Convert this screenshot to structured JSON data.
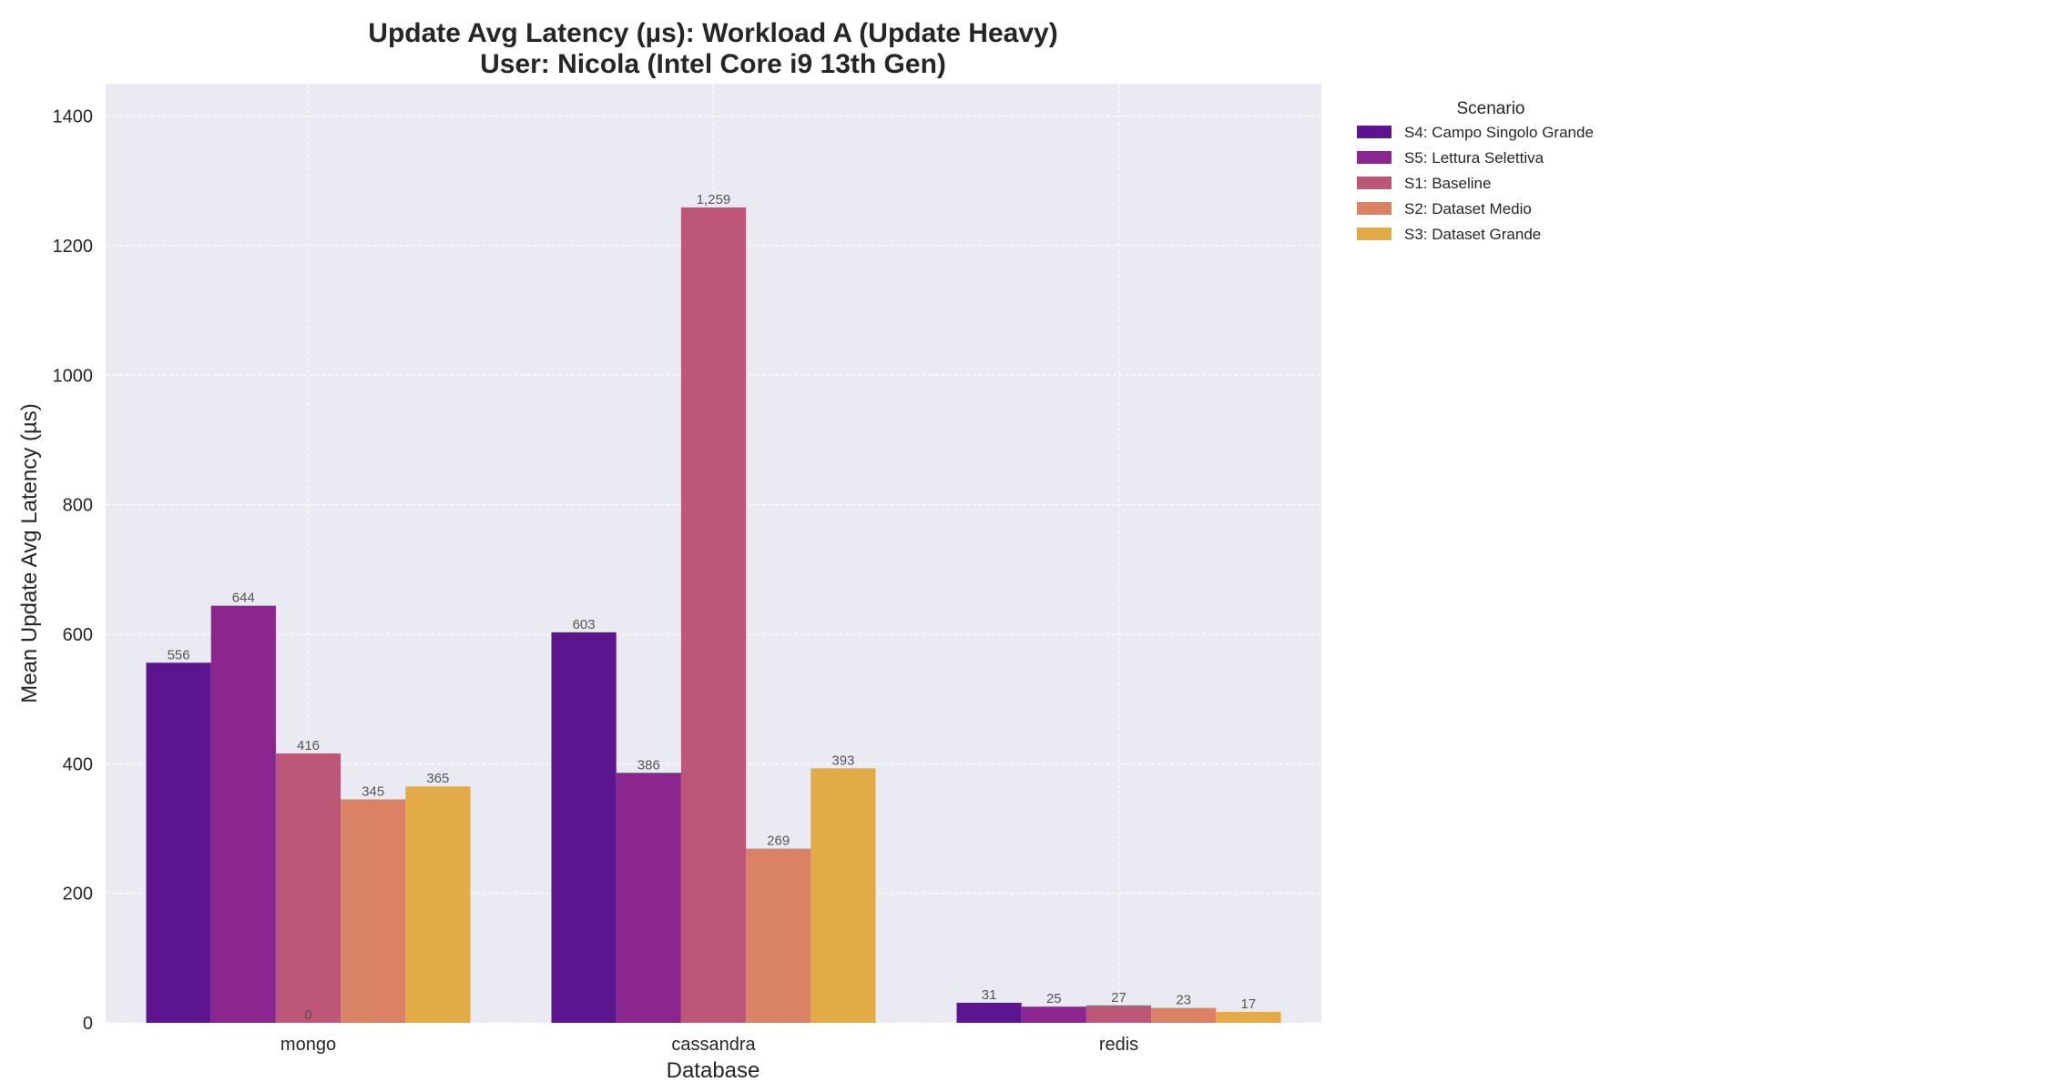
{
  "chart_data": {
    "type": "bar",
    "title": [
      "Update Avg Latency (µs): Workload A (Update Heavy)",
      "User: Nicola (Intel Core i9 13th Gen)"
    ],
    "xlabel": "Database",
    "ylabel": "Mean Update Avg Latency (µs)",
    "categories": [
      "mongo",
      "cassandra",
      "redis"
    ],
    "ylim": [
      0,
      1450
    ],
    "yticks": [
      0,
      200,
      400,
      600,
      800,
      1000,
      1200,
      1400
    ],
    "grid": true,
    "legend_title": "Scenario",
    "legend_position": "outside-top-right",
    "series": [
      {
        "name": "S4: Campo Singolo Grande",
        "color": "#5c148f",
        "values": [
          556,
          603,
          31
        ],
        "labels": [
          "556",
          "603",
          "31"
        ]
      },
      {
        "name": "S5: Lettura Selettiva",
        "color": "#8b268e",
        "values": [
          644,
          386,
          25
        ],
        "labels": [
          "644",
          "386",
          "25"
        ]
      },
      {
        "name": "S1: Baseline",
        "color": "#bd5777",
        "values": [
          416,
          1259,
          27
        ],
        "labels": [
          "416",
          "1,259",
          "27"
        ]
      },
      {
        "name": "S2: Dataset Medio",
        "color": "#da8264",
        "values": [
          345,
          269,
          23
        ],
        "labels": [
          "345",
          "269",
          "23"
        ]
      },
      {
        "name": "S3: Dataset Grande",
        "color": "#e3aa48",
        "values": [
          365,
          393,
          17
        ],
        "labels": [
          "365",
          "393",
          "17"
        ]
      }
    ],
    "annotations": [
      {
        "text": "0",
        "category": "mongo",
        "y": 0
      }
    ]
  }
}
